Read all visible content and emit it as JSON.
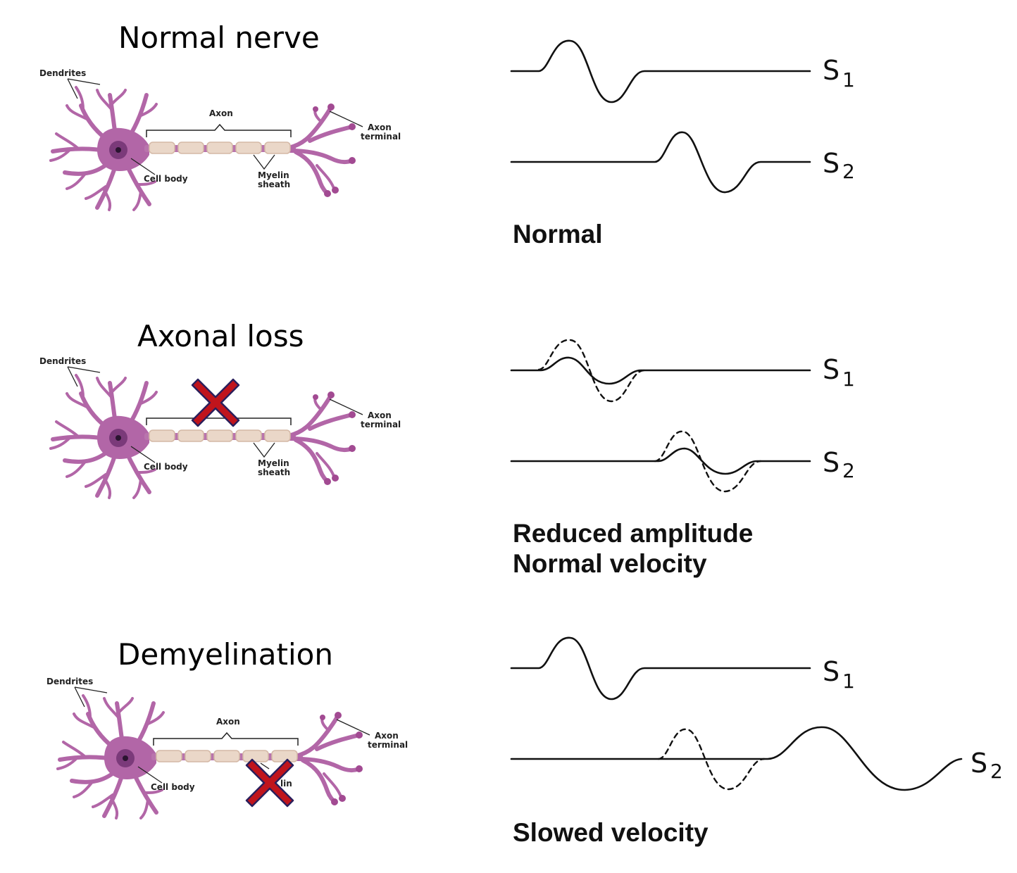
{
  "panels": [
    {
      "title": "Normal nerve",
      "labels": {
        "dendrites": "Dendrites",
        "axon": "Axon",
        "axon_terminal_1": "Axon",
        "axon_terminal_2": "terminal",
        "cell_body": "Cell body",
        "myelin_1": "Myelin",
        "myelin_2": "sheath"
      },
      "signals": [
        {
          "letter": "S",
          "index": "1"
        },
        {
          "letter": "S",
          "index": "2"
        }
      ],
      "caption": [
        "Normal"
      ]
    },
    {
      "title": "Axonal loss",
      "labels": {
        "dendrites": "Dendrites",
        "axon_terminal_1": "Axon",
        "axon_terminal_2": "terminal",
        "cell_body": "Cell body",
        "myelin_1": "Myelin",
        "myelin_2": "sheath"
      },
      "signals": [
        {
          "letter": "S",
          "index": "1"
        },
        {
          "letter": "S",
          "index": "2"
        }
      ],
      "caption": [
        "Reduced amplitude",
        "Normal velocity"
      ]
    },
    {
      "title": "Demyelination",
      "labels": {
        "dendrites": "Dendrites",
        "axon": "Axon",
        "axon_terminal_1": "Axon",
        "axon_terminal_2": "terminal",
        "cell_body": "Cell body",
        "myelin_partial": "lin"
      },
      "signals": [
        {
          "letter": "S",
          "index": "1"
        },
        {
          "letter": "S",
          "index": "2"
        }
      ],
      "caption": [
        "Slowed velocity"
      ]
    }
  ],
  "colors": {
    "neuron": "#b266a7",
    "nucleus": "#4a2a52",
    "myelin": "#ead7c8",
    "cross": "#c0141c",
    "cross_outline": "#2a1f5c"
  }
}
